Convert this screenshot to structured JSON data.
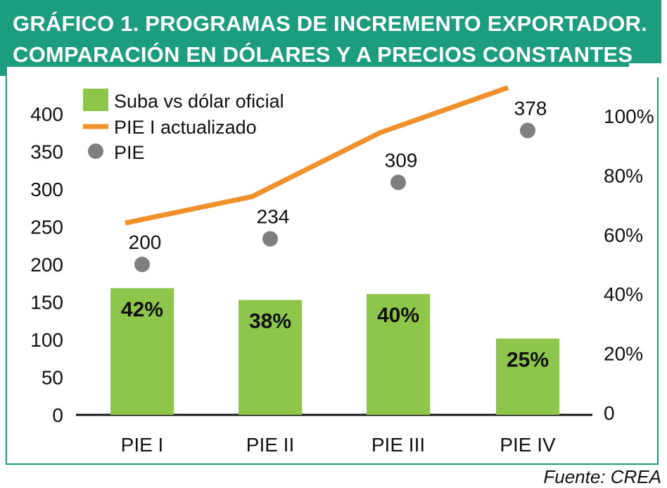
{
  "header": {
    "title_line1": "GRÁFICO 1. PROGRAMAS DE INCREMENTO EXPORTADOR.",
    "title_line2": "COMPARACIÓN EN DÓLARES Y A PRECIOS CONSTANTES"
  },
  "source": "Fuente: CREA",
  "colors": {
    "header_bg": "#1c9e7e",
    "bar": "#8dc64b",
    "line": "#f0902a",
    "dot": "#7f7f7f"
  },
  "chart_data": {
    "type": "bar",
    "categories": [
      "PIE I",
      "PIE II",
      "PIE III",
      "PIE IV"
    ],
    "left_axis": {
      "ticks": [
        "0",
        "50",
        "100",
        "150",
        "200",
        "250",
        "300",
        "350",
        "400"
      ],
      "range": [
        0,
        400
      ]
    },
    "right_axis": {
      "ticks": [
        "0",
        "20%",
        "40%",
        "60%",
        "80%",
        "100%"
      ],
      "range": [
        0,
        100
      ]
    },
    "legend": {
      "bar": "Suba vs dólar oficial",
      "line": "PIE I actualizado",
      "dot": "PIE"
    },
    "series": [
      {
        "name": "Suba vs dólar oficial",
        "type": "bar",
        "axis": "right",
        "values": [
          42,
          38,
          40,
          25
        ],
        "labels": [
          "42%",
          "38%",
          "40%",
          "25%"
        ]
      },
      {
        "name": "PIE I actualizado",
        "type": "line",
        "axis": "left",
        "values": [
          255,
          290,
          375,
          435
        ]
      },
      {
        "name": "PIE",
        "type": "scatter",
        "axis": "left",
        "values": [
          200,
          234,
          309,
          378
        ],
        "labels": [
          "200",
          "234",
          "309",
          "378"
        ]
      }
    ]
  }
}
